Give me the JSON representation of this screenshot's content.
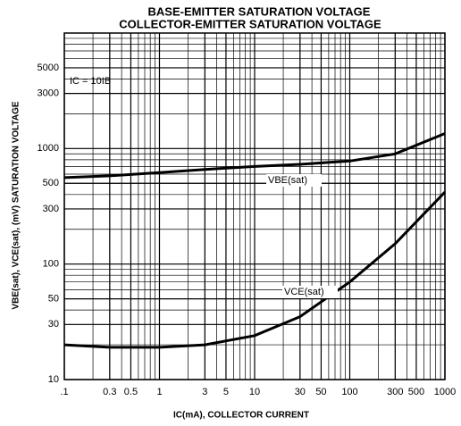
{
  "chart_data": {
    "type": "line",
    "title": "BASE-EMITTER SATURATION VOLTAGE",
    "subtitle": "COLLECTOR-EMITTER SATURATION VOLTAGE",
    "x_label": "IC(mA), COLLECTOR CURRENT",
    "y_label": "VBE(sat), VCE(sat), (mV)   SATURATION VOLTAGE",
    "annotations": [
      "IC = 10IB"
    ],
    "x": [
      0.1,
      0.3,
      1,
      3,
      10,
      30,
      100,
      300,
      1000
    ],
    "series": [
      {
        "name": "VBE(sat)",
        "color": "#000000",
        "values": [
          560,
          580,
          620,
          660,
          700,
          730,
          780,
          900,
          1350
        ]
      },
      {
        "name": "VCE(sat)",
        "color": "#000000",
        "values": [
          20,
          19,
          19,
          20,
          24,
          35,
          70,
          150,
          420
        ]
      }
    ],
    "xlim": [
      0.1,
      1000
    ],
    "ylim": [
      10,
      10000
    ],
    "xticks": [
      {
        "value": 0.1,
        "label": ".1"
      },
      0.3,
      0.5,
      1,
      3,
      5,
      10,
      30,
      50,
      100,
      300,
      500,
      1000
    ],
    "yticks": [
      10,
      30,
      50,
      100,
      300,
      500,
      1000,
      3000,
      5000
    ],
    "log_x": true,
    "log_y": true,
    "grid": true
  }
}
